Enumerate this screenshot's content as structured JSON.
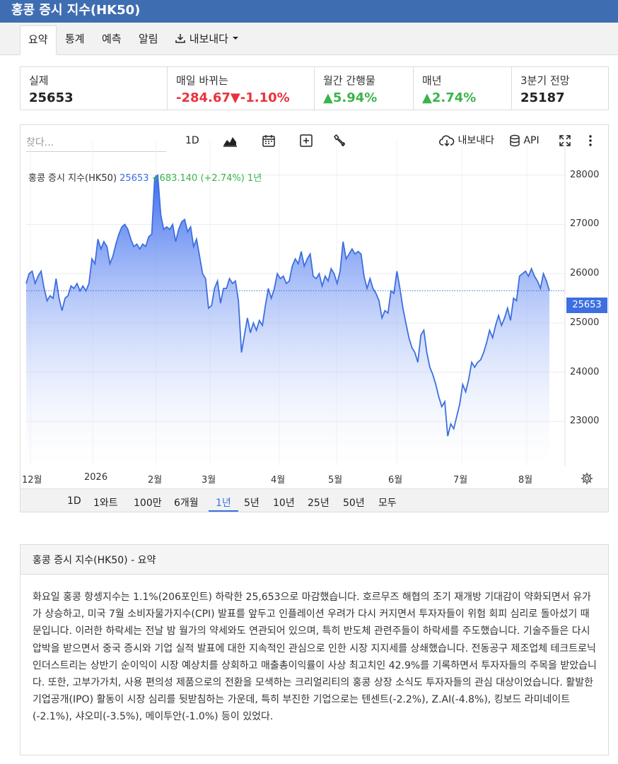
{
  "page_title": "홍콩 증시 지수(HK50)",
  "tabs": [
    {
      "label": "요약"
    },
    {
      "label": "통계"
    },
    {
      "label": "예측"
    },
    {
      "label": "알림"
    },
    {
      "label": "내보내다"
    }
  ],
  "stats": [
    {
      "label": "실제",
      "value": "25653"
    },
    {
      "label": "매일 바뀌는",
      "value": "-284.67▼-1.10%"
    },
    {
      "label": "월간 간행물",
      "value": "▲5.94%"
    },
    {
      "label": "매년",
      "value": "▲2.74%"
    },
    {
      "label": "3분기 전망",
      "value": "25187"
    }
  ],
  "toolbar": {
    "search_placeholder": "찾다...",
    "interval": "1D",
    "export": "내보내다",
    "api": "API"
  },
  "legend": {
    "name": "홍콩 증시 지수(HK50)",
    "price": "25653",
    "change": "+683.140 (+2.74%)",
    "period": "1년"
  },
  "price_tag": "25653",
  "ranges": [
    "1D",
    "1와트",
    "100만",
    "6개월",
    "1년",
    "5년",
    "10년",
    "25년",
    "50년",
    "모두"
  ],
  "active_range": "1년",
  "colors": {
    "accent": "#3d6fe0",
    "header": "#3f6db1",
    "negative": "#e8333c",
    "positive": "#39b54a"
  },
  "chart_data": {
    "type": "area",
    "ylim": [
      22100,
      28700
    ],
    "y_ticks": [
      23000,
      24000,
      25000,
      26000,
      27000,
      28000
    ],
    "x_tick_labels": [
      "12월",
      "2026",
      "2월",
      "3월",
      "4월",
      "5월",
      "6월",
      "7월",
      "8월"
    ],
    "current": 25653,
    "series": [
      {
        "values": [
          25800,
          26000,
          26050,
          25800,
          25950,
          26050,
          25700,
          25450,
          25550,
          25500,
          25900,
          25500,
          25250,
          25500,
          25550,
          25750,
          25700,
          25800,
          25650,
          25750,
          25650,
          25800,
          26300,
          26200,
          26700,
          26500,
          26650,
          26550,
          26200,
          26350,
          26600,
          26800,
          26950,
          27000,
          26900,
          26700,
          26550,
          26600,
          26500,
          26600,
          26550,
          26750,
          26800,
          27950,
          28000,
          27200,
          26900,
          26950,
          26900,
          27000,
          26650,
          26900,
          27050,
          27100,
          26850,
          26950,
          26550,
          26700,
          26350,
          26000,
          25900,
          25300,
          25350,
          25700,
          25850,
          25400,
          25700,
          25700,
          25900,
          25800,
          25850,
          25450,
          24400,
          24750,
          25100,
          24800,
          25000,
          24850,
          25050,
          24950,
          25350,
          25700,
          25500,
          25700,
          26000,
          25900,
          25950,
          25800,
          25850,
          26150,
          26300,
          26200,
          26450,
          26150,
          26300,
          26400,
          25950,
          25900,
          26000,
          25750,
          25950,
          25850,
          26100,
          26000,
          25800,
          26050,
          26650,
          26300,
          26400,
          26500,
          26400,
          26450,
          26400,
          25950,
          25700,
          25900,
          25700,
          25600,
          25450,
          25100,
          25250,
          25200,
          25650,
          25600,
          26050,
          25700,
          25300,
          25000,
          24700,
          24500,
          24400,
          24200,
          24750,
          24850,
          24400,
          24100,
          23950,
          23750,
          23500,
          23300,
          23400,
          22700,
          22950,
          22850,
          23100,
          23350,
          23750,
          23600,
          23850,
          24200,
          24100,
          24200,
          24250,
          24400,
          24600,
          24850,
          24700,
          24950,
          25150,
          24950,
          25100,
          25300,
          25050,
          25500,
          25450,
          25950,
          26000,
          26050,
          25950,
          26100,
          25950,
          25850,
          25700,
          26000,
          25850,
          25650
        ]
      }
    ]
  }
}
